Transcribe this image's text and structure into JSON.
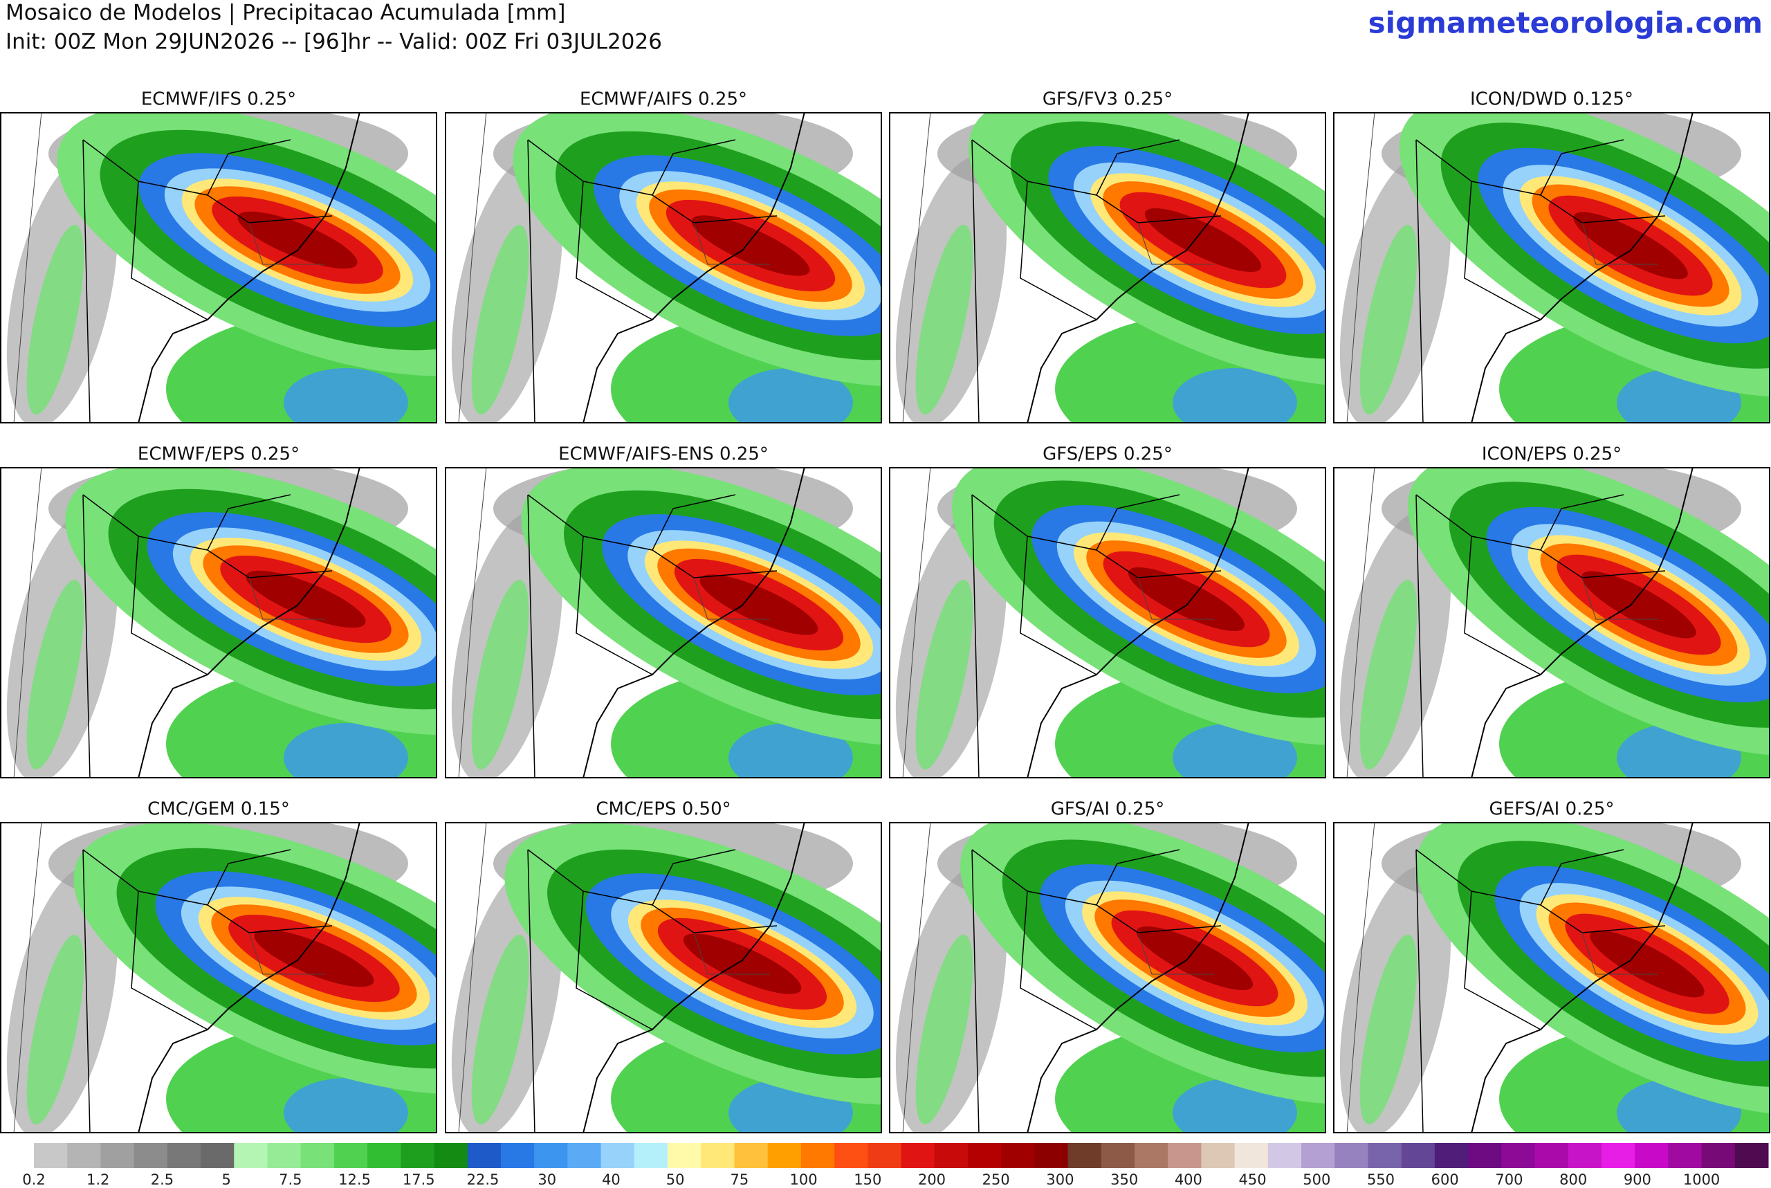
{
  "header": {
    "title": "Mosaico de Modelos | Precipitacao Acumulada [mm]",
    "subtitle": "Init: 00Z Mon 29JUN2026 -- [96]hr -- Valid: 00Z Fri 03JUL2026",
    "site": "sigmameteorologia.com"
  },
  "panels": [
    {
      "title": "ECMWF/IFS 0.25°"
    },
    {
      "title": "ECMWF/AIFS 0.25°"
    },
    {
      "title": "GFS/FV3 0.25°"
    },
    {
      "title": "ICON/DWD 0.125°"
    },
    {
      "title": "ECMWF/EPS 0.25°"
    },
    {
      "title": "ECMWF/AIFS-ENS 0.25°"
    },
    {
      "title": "GFS/EPS 0.25°"
    },
    {
      "title": "ICON/EPS 0.25°"
    },
    {
      "title": "CMC/GEM 0.15°"
    },
    {
      "title": "CMC/EPS 0.50°"
    },
    {
      "title": "GFS/AI 0.25°"
    },
    {
      "title": "GEFS/AI 0.25°"
    }
  ],
  "colorbar": {
    "labels": [
      "0.2",
      "1.2",
      "2.5",
      "5",
      "7.5",
      "12.5",
      "17.5",
      "22.5",
      "30",
      "40",
      "50",
      "75",
      "100",
      "150",
      "200",
      "250",
      "300",
      "350",
      "400",
      "450",
      "500",
      "550",
      "600",
      "700",
      "800",
      "900",
      "1000"
    ],
    "colors": [
      "#c8c8c8",
      "#b4b4b4",
      "#a0a0a0",
      "#8c8c8c",
      "#787878",
      "#6a6a6a",
      "#b4f5b4",
      "#96eb96",
      "#78e178",
      "#50d250",
      "#32be32",
      "#1ea01e",
      "#148c14",
      "#1e5ac8",
      "#2878e6",
      "#3c96f0",
      "#5aaaf5",
      "#96d2fa",
      "#b4f0fa",
      "#fffaaa",
      "#ffe878",
      "#ffc03c",
      "#ffa000",
      "#ff7800",
      "#ff5014",
      "#f03c14",
      "#e11414",
      "#c80a0a",
      "#b40000",
      "#a00000",
      "#8c0000",
      "#6e3c28",
      "#8c5a46",
      "#aa7864",
      "#c8968c",
      "#dcc8b4",
      "#f0e6dc",
      "#d2c8e6",
      "#b4a0d2",
      "#9682be",
      "#7864aa",
      "#644696",
      "#501e78",
      "#6e0a82",
      "#8c0a96",
      "#aa0aaa",
      "#c814c8",
      "#e61ee6",
      "#c80ac8",
      "#a00aa0",
      "#780a78",
      "#500a50"
    ]
  }
}
